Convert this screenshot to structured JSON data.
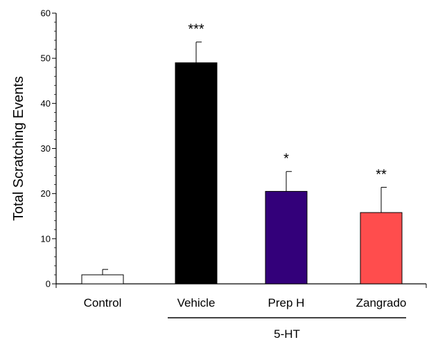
{
  "chart_data": {
    "type": "bar",
    "categories": [
      "Control",
      "Vehicle",
      "Prep H",
      "Zangrado"
    ],
    "values": [
      2,
      49,
      20.5,
      15.8
    ],
    "error_bars": [
      1.2,
      4.6,
      4.4,
      5.6
    ],
    "significance": [
      "",
      "***",
      "*",
      "**"
    ],
    "colors": [
      "#ffffff",
      "#000000",
      "#33007a",
      "#ff4d4d"
    ],
    "title": "",
    "xlabel": "",
    "ylabel": "Total Scratching Events",
    "ylim": [
      0,
      60
    ],
    "yticks": [
      0,
      10,
      20,
      30,
      40,
      50,
      60
    ],
    "grid": false,
    "legend": "none",
    "group_bracket": {
      "label": "5-HT",
      "categories": [
        "Vehicle",
        "Prep H",
        "Zangrado"
      ]
    }
  }
}
